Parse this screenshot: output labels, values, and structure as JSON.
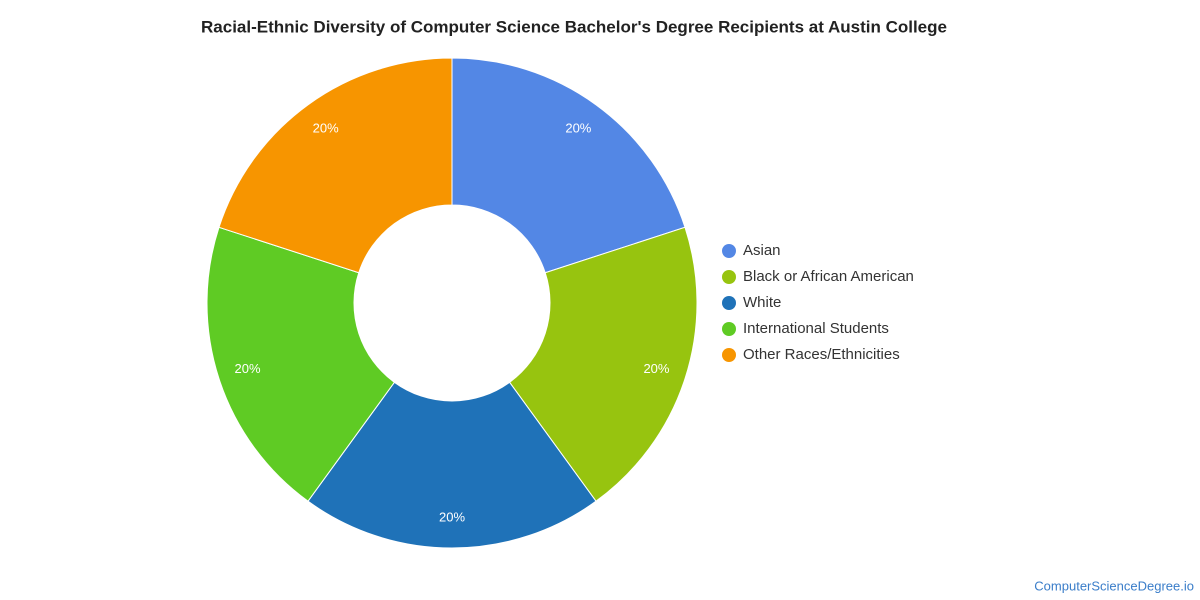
{
  "chart_data": {
    "type": "donut",
    "title": "Racial-Ethnic Diversity of Computer Science Bachelor's Degree Recipients at Austin College",
    "categories": [
      "Asian",
      "Black or African American",
      "White",
      "International Students",
      "Other Races/Ethnicities"
    ],
    "values": [
      20,
      20,
      20,
      20,
      20
    ],
    "value_labels": [
      "20%",
      "20%",
      "20%",
      "20%",
      "20%"
    ],
    "colors": [
      "#5387e5",
      "#97c40f",
      "#1f72b8",
      "#5fcb24",
      "#f79500"
    ],
    "legend": "right",
    "source": "ComputerScienceDegree.io"
  }
}
